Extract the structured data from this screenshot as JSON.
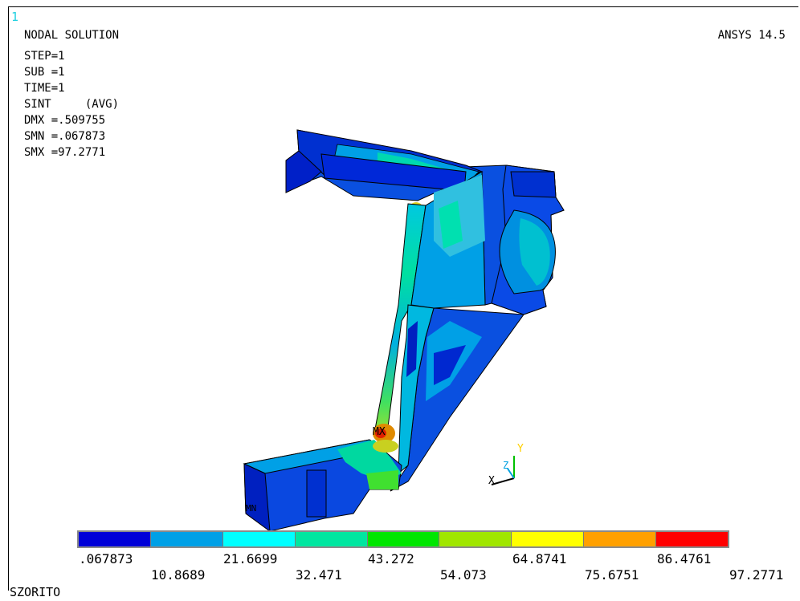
{
  "window_number": "1",
  "plot_title": "NODAL SOLUTION",
  "product_version": "ANSYS 14.5",
  "step_info": [
    "STEP=1",
    "SUB =1",
    "TIME=1",
    "SINT     (AVG)",
    "DMX =.509755",
    "SMN =.067873",
    "SMX =97.2771"
  ],
  "markers": {
    "max": "MX",
    "min": "MN"
  },
  "triad": {
    "x": "X",
    "y": "Y",
    "z": "Z"
  },
  "legend": {
    "colors": [
      "#0000d8",
      "#00a0e6",
      "#00ffff",
      "#00e6a0",
      "#00e600",
      "#a0e600",
      "#ffff00",
      "#ffa000",
      "#ff0000"
    ],
    "labels_upper": [
      ".067873",
      "21.6699",
      "43.272",
      "64.8741",
      "86.4761"
    ],
    "labels_lower": [
      "10.8689",
      "32.471",
      "54.073",
      "75.6751",
      "97.2771"
    ]
  },
  "jobname": "SZORITO"
}
